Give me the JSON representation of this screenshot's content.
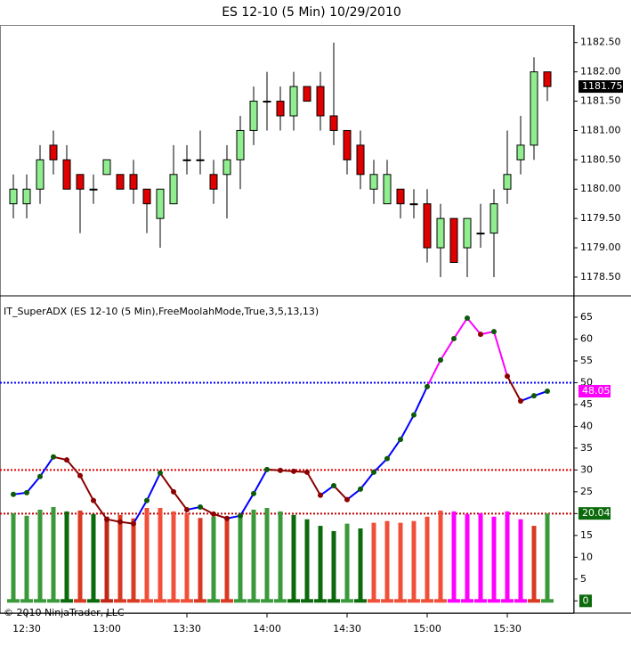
{
  "title": "ES 12-10 (5 Min)  10/29/2010",
  "footer": "© 2010 NinjaTrader, LLC",
  "chart_data": [
    {
      "type": "candlestick",
      "categories": [
        null,
        "12:30",
        null,
        null,
        null,
        null,
        null,
        "13:00",
        null,
        null,
        null,
        null,
        null,
        "13:30",
        null,
        null,
        null,
        null,
        null,
        "14:00",
        null,
        null,
        null,
        null,
        null,
        "14:30",
        null,
        null,
        null,
        null,
        null,
        "15:00",
        null,
        null,
        null,
        null,
        null,
        "15:30",
        null,
        null,
        null
      ],
      "open": [
        1179.75,
        1179.75,
        1180,
        1180.75,
        1180.5,
        1180.25,
        1180,
        1180.25,
        1180.25,
        1180.25,
        1180,
        1179.5,
        1179.75,
        1180.5,
        1180.5,
        1180.25,
        1180.25,
        1180.5,
        1181,
        1181.5,
        1181.5,
        1181.25,
        1181.75,
        1181.75,
        1181.25,
        1181,
        1180.75,
        1180,
        1179.75,
        1180,
        1179.75,
        1179.75,
        1179,
        1179.5,
        1179,
        1179.25,
        1179.25,
        1180,
        1180.5,
        1180.75,
        1182
      ],
      "high": [
        1180.25,
        1180.25,
        1180.75,
        1181,
        1180.75,
        1180.25,
        1180.25,
        1180.5,
        1180.25,
        1180.5,
        1180,
        1180,
        1180.75,
        1180.75,
        1181,
        1180.5,
        1180.75,
        1181.25,
        1181.75,
        1182,
        1181.75,
        1182,
        1181.75,
        1182,
        1182.5,
        1181,
        1181,
        1180.5,
        1180.5,
        1180,
        1180,
        1180,
        1179.75,
        1179.5,
        1179.5,
        1179.75,
        1180,
        1181,
        1181.25,
        1182.25,
        1182
      ],
      "low": [
        1179.5,
        1179.5,
        1179.75,
        1180.25,
        1180,
        1179.25,
        1179.75,
        1180.25,
        1180,
        1179.75,
        1179.25,
        1179,
        1179.75,
        1180.25,
        1180.25,
        1179.75,
        1179.5,
        1180,
        1180.75,
        1181,
        1181,
        1181,
        1181.5,
        1181,
        1180.75,
        1180.25,
        1180,
        1179.75,
        1179.75,
        1179.5,
        1179.5,
        1178.75,
        1178.5,
        1178.75,
        1178.5,
        1179,
        1178.5,
        1179.75,
        1180.25,
        1180.5,
        1181.5
      ],
      "close": [
        1180,
        1180,
        1180.5,
        1180.5,
        1180,
        1180,
        1180,
        1180.5,
        1180,
        1180,
        1179.75,
        1180,
        1180.25,
        1180.5,
        1180.5,
        1180,
        1180.5,
        1181,
        1181.5,
        1181.5,
        1181.25,
        1181.75,
        1181.5,
        1181.25,
        1181,
        1180.5,
        1180.25,
        1180.25,
        1180.25,
        1179.75,
        1179.75,
        1179,
        1179.5,
        1178.75,
        1179.5,
        1179.25,
        1179.75,
        1180.25,
        1180.75,
        1182,
        1181.75
      ],
      "up_color": "#90ee90",
      "down_color": "#e00000",
      "ylim": [
        1178.18,
        1182.8
      ],
      "yticks": [
        {
          "value": 1178.5,
          "label": "1178.50"
        },
        {
          "value": 1179,
          "label": "1179.00"
        },
        {
          "value": 1179.5,
          "label": "1179.50"
        },
        {
          "value": 1180,
          "label": "1180.00"
        },
        {
          "value": 1180.5,
          "label": "1180.50"
        },
        {
          "value": 1181,
          "label": "1181.00"
        },
        {
          "value": 1181.5,
          "label": "1181.50"
        },
        {
          "value": 1182,
          "label": "1182.00"
        },
        {
          "value": 1182.5,
          "label": "1182.50"
        }
      ]
    },
    {
      "type": "indicator",
      "title": "IT_SuperADX (ES 12-10 (5 Min),FreeMoolahMode,True,3,5,13,13)",
      "line_values": [
        24.4,
        24.8,
        28.5,
        33,
        32.3,
        28.7,
        23,
        18.7,
        18.1,
        17.7,
        23,
        29.3,
        25,
        20.9,
        21.5,
        19.9,
        18.9,
        19.5,
        24.6,
        30.1,
        29.9,
        29.7,
        29.5,
        24.2,
        26.4,
        23.2,
        25.6,
        29.5,
        32.6,
        37,
        42.6,
        49.1,
        55.2,
        60.1,
        64.8,
        61.1,
        61.7,
        51.5,
        45.8,
        47,
        48.05
      ],
      "bar_values": [
        20.1,
        19.5,
        20.9,
        21.5,
        20.5,
        20.7,
        19.9,
        19.3,
        19.7,
        18.9,
        21.3,
        21.3,
        20.5,
        20.1,
        19,
        19.3,
        18.9,
        19.7,
        20.9,
        21.3,
        20.5,
        19.7,
        18.7,
        17.2,
        16,
        17.7,
        16.6,
        17.9,
        18.3,
        17.9,
        18.3,
        19.3,
        20.7,
        20.5,
        19.9,
        20.1,
        19.3,
        20.5,
        18.7,
        17.2,
        20.04
      ],
      "bar_colors": [
        "#3a9a3a",
        "#3a9a3a",
        "#3a9a3a",
        "#3a9a3a",
        "#0b6a0b",
        "#d83a22",
        "#0b6a0b",
        "#c02818",
        "#d83a22",
        "#d83a22",
        "#f0503a",
        "#f0503a",
        "#f0503a",
        "#f0503a",
        "#d83a22",
        "#3a9a3a",
        "#d83a22",
        "#3a9a3a",
        "#3a9a3a",
        "#3a9a3a",
        "#3a9a3a",
        "#0b6a0b",
        "#0b6a0b",
        "#0b6a0b",
        "#0b6a0b",
        "#3a9a3a",
        "#0b6a0b",
        "#f0503a",
        "#f0503a",
        "#f0503a",
        "#f0503a",
        "#f0503a",
        "#f0503a",
        "#ff00ff",
        "#ff00ff",
        "#ff00ff",
        "#ff00ff",
        "#ff00ff",
        "#ff00ff",
        "#d83a22",
        "#3a9a3a"
      ],
      "reference_lines": [
        50,
        30,
        20
      ],
      "reference_colors": [
        "#0000ff",
        "#e00000",
        "#c00000"
      ],
      "ylim": [
        -2.8,
        69.9
      ],
      "yticks": [
        0,
        5,
        10,
        15,
        20,
        25,
        30,
        35,
        40,
        45,
        50,
        55,
        60,
        65
      ]
    }
  ]
}
